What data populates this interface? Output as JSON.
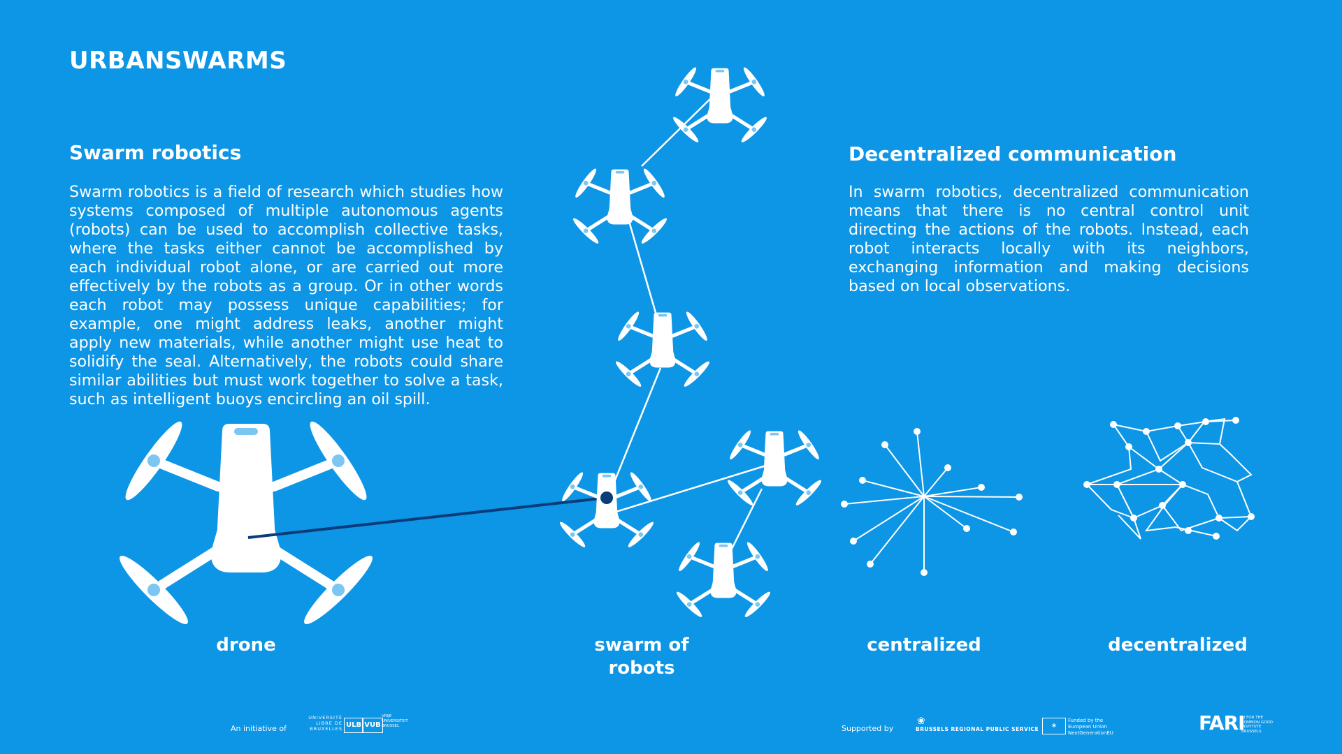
{
  "brand": "URBANSWARMS",
  "left": {
    "heading": "Swarm robotics",
    "paragraph": "Swarm robotics is a field of research which studies how systems composed of multiple autonomous agents (robots) can be used to accomplish collective tasks, where the tasks either cannot be accomplished by each individual robot alone, or are carried out more effectively by the robots as a group. Or in other words each robot may possess unique capabilities; for example, one might address leaks, another might apply new materials, while another might use heat to solidify the seal. Alternatively, the robots could share similar abilities but must work together to solve a task, such as intelligent buoys encircling an oil spill."
  },
  "right": {
    "heading": "Decentralized communication",
    "paragraph": "In swarm robotics, decentralized communication means that there is no central control unit directing the actions of the robots. Instead, each robot interacts locally with its neighbors, exchanging information and making decisions based on local observations."
  },
  "captions": {
    "drone": "drone",
    "swarm": "swarm of robots",
    "centralized": "centralized",
    "decentralized": "decentralized"
  },
  "footer": {
    "initiative": "An initiative of",
    "ulb_text": "UNIVERSITÉ LIBRE DE BRUXELLES",
    "ulb_logo": "ULB",
    "vub_logo": "VUB",
    "vub_text": "VRIJE UNIVERSITEIT BRUSSEL",
    "supported": "Supported by",
    "brussels": "BRUSSELS REGIONAL PUBLIC SERVICE",
    "eu_text": "Funded by the European Union NextGenerationEU",
    "fari_logo": "FARI",
    "fari_text": "AI FOR THE COMMON GOOD INSTITUTE BRUSSELS"
  },
  "colors": {
    "background": "#0d95e6",
    "foreground": "#ffffff",
    "link_line": "#0a3c7a"
  },
  "icons": [
    "drone-icon",
    "network-star-icon",
    "network-mesh-icon",
    "brussels-iris-icon",
    "eu-flag-icon"
  ]
}
